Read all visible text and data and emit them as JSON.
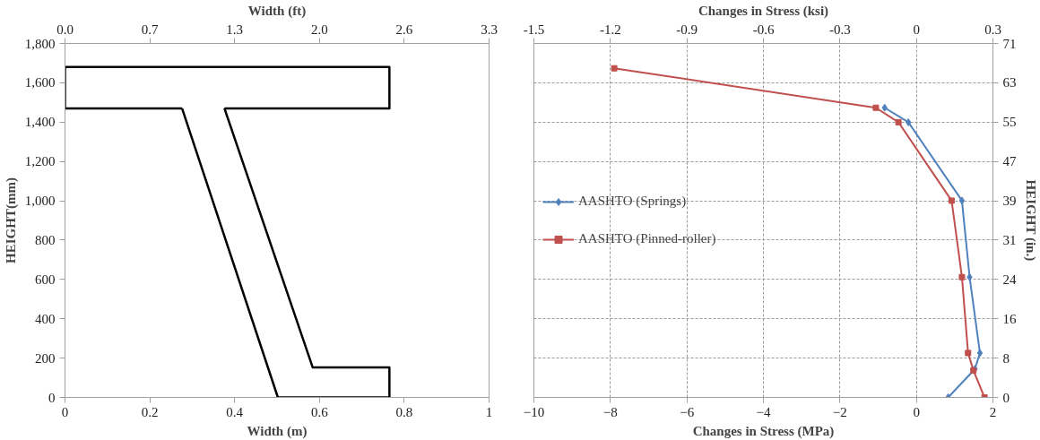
{
  "chart_data": [
    {
      "type": "line",
      "xlabel": "Width (m)",
      "x2label": "Width (ft)",
      "ylabel": "HEIGHT(mm)",
      "xlim": [
        0,
        1
      ],
      "xticks": [
        0,
        0.2,
        0.4,
        0.6,
        0.8,
        1
      ],
      "x2lim": [
        0,
        3.2808
      ],
      "x2ticks": [
        {
          "value": 0,
          "label": "0.0"
        },
        {
          "value": 0.6562,
          "label": "0.7"
        },
        {
          "value": 1.3123,
          "label": "1.3"
        },
        {
          "value": 1.9685,
          "label": "2.0"
        },
        {
          "value": 2.6247,
          "label": "2.6"
        },
        {
          "value": 3.2808,
          "label": "3.3"
        }
      ],
      "ylim": [
        0,
        1800
      ],
      "yticks": [
        0,
        200,
        400,
        600,
        800,
        {
          "value": 1000,
          "label": "1,000"
        },
        {
          "value": 1200,
          "label": "1,200"
        },
        {
          "value": 1400,
          "label": "1,400"
        },
        {
          "value": 1600,
          "label": "1,600"
        },
        {
          "value": 1800,
          "label": "1,800"
        }
      ],
      "grid": false,
      "legend": false,
      "marker": "none",
      "line_style": "solid",
      "series": [
        {
          "color": "#000000",
          "x": [
            0.276,
            0,
            0,
            0.765,
            0.765,
            0.376
          ],
          "values": [
            1470,
            1470,
            1680,
            1680,
            1470,
            1470
          ]
        },
        {
          "color": "#000000",
          "x": [
            0.376,
            0.584,
            0.765,
            0.765,
            0.502,
            0.276
          ],
          "values": [
            1470,
            153,
            153,
            0,
            0,
            1470
          ]
        }
      ]
    },
    {
      "type": "line",
      "xlabel": "Changes in Stress (MPa)",
      "x2label": "Changes in Stress (ksi)",
      "y2label": "HEIGHT (in.)",
      "xlim": [
        -10,
        2
      ],
      "xticks": [
        -10,
        -8,
        -6,
        -4,
        -2,
        0,
        2
      ],
      "x2lim": [
        -1.4504,
        0.2901
      ],
      "x2ticks": [
        {
          "value": -1.4504,
          "label": "-1.5"
        },
        {
          "value": -1.1603,
          "label": "-1.2"
        },
        {
          "value": -0.8702,
          "label": "-0.9"
        },
        {
          "value": -0.5801,
          "label": "-0.6"
        },
        {
          "value": -0.2901,
          "label": "-0.3"
        },
        0,
        {
          "value": 0.2901,
          "label": "0.3"
        }
      ],
      "y2lim": [
        0,
        70.87
      ],
      "y2ticks": [
        0,
        {
          "value": 7.874,
          "label": "8"
        },
        {
          "value": 15.748,
          "label": "16"
        },
        {
          "value": 23.622,
          "label": "24"
        },
        {
          "value": 31.496,
          "label": "31"
        },
        {
          "value": 39.37,
          "label": "39"
        },
        {
          "value": 47.244,
          "label": "47"
        },
        {
          "value": 55.118,
          "label": "55"
        },
        {
          "value": 62.992,
          "label": "63"
        },
        {
          "value": 70.866,
          "label": "71"
        }
      ],
      "grid": true,
      "legend": "left",
      "line_style": "solid",
      "series": [
        {
          "name": "AASHTO (Springs)",
          "color": "#4f81bd",
          "axis": "y2",
          "marker": "diamond",
          "x": [
            0.83,
            1.53,
            1.66,
            1.39,
            1.19,
            -0.21,
            -0.83
          ],
          "values": [
            0,
            5.7,
            8.9,
            24.1,
            39.4,
            55.1,
            58.0
          ]
        },
        {
          "name": "AASHTO (Pinned-roller)",
          "color": "#c0504d",
          "axis": "y2",
          "marker": "square",
          "x": [
            1.78,
            1.49,
            1.35,
            1.19,
            0.92,
            -0.47,
            -1.06,
            -7.9
          ],
          "values": [
            0,
            5.4,
            8.9,
            24.1,
            39.4,
            55.1,
            58.0,
            65.9
          ]
        }
      ]
    }
  ]
}
